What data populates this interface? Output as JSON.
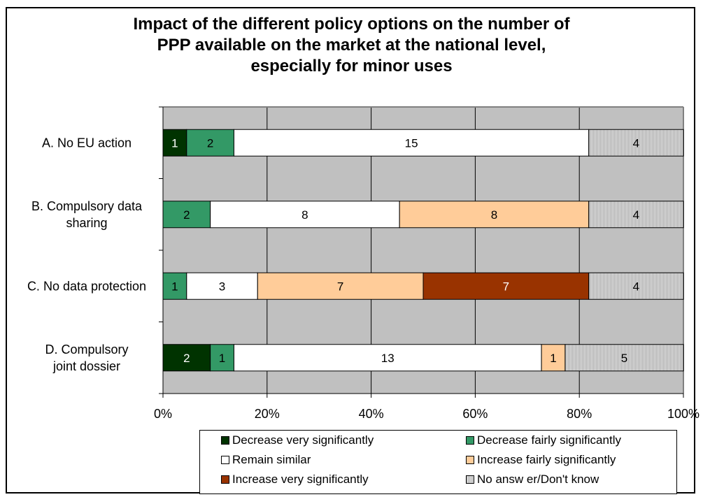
{
  "chart_data": {
    "type": "bar",
    "orientation": "horizontal",
    "stacked": "percent",
    "title": [
      "Impact of the different policy options on the number of",
      "PPP available on the market at the national level,",
      "especially for minor uses"
    ],
    "categories": [
      [
        "A. No EU action"
      ],
      [
        "B. Compulsory data",
        "sharing"
      ],
      [
        "C. No data protection"
      ],
      [
        "D. Compulsory",
        "joint dossier"
      ]
    ],
    "series": [
      {
        "name": "Decrease very significantly",
        "color": "#003300",
        "hatch": false,
        "values": [
          1,
          0,
          0,
          2
        ]
      },
      {
        "name": "Decrease fairly significantly",
        "color": "#339966",
        "hatch": false,
        "values": [
          2,
          2,
          1,
          1
        ]
      },
      {
        "name": "Remain similar",
        "color": "#ffffff",
        "hatch": false,
        "values": [
          15,
          8,
          3,
          13
        ]
      },
      {
        "name": "Increase fairly significantly",
        "color": "#ffcc99",
        "hatch": false,
        "values": [
          0,
          8,
          7,
          1
        ]
      },
      {
        "name": "Increase very significantly",
        "color": "#993300",
        "hatch": false,
        "values": [
          0,
          0,
          7,
          0
        ]
      },
      {
        "name": "No answ er/Don't know",
        "color": "#c8c8c8",
        "hatch": true,
        "values": [
          4,
          4,
          4,
          5
        ]
      }
    ],
    "xticks": [
      "0%",
      "20%",
      "40%",
      "60%",
      "80%",
      "100%"
    ],
    "xlim": [
      0,
      100
    ],
    "grid": true,
    "legend_position": "bottom",
    "plot_background": "#c0c0c0"
  }
}
